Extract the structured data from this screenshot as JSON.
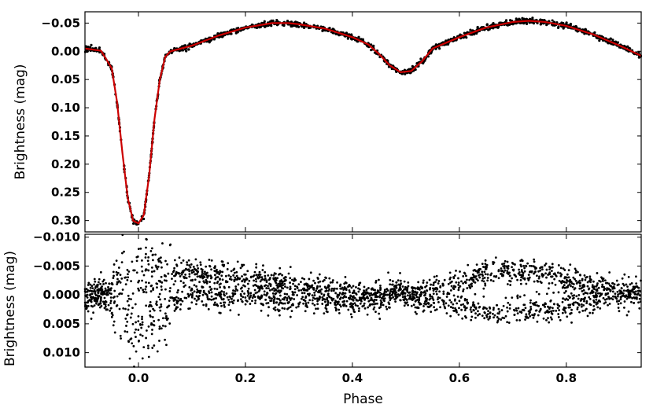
{
  "chart_data": [
    {
      "type": "line",
      "panel": "light curve",
      "xlabel": "",
      "ylabel": "Brightness (mag)",
      "xlim": [
        -0.1,
        0.94
      ],
      "ylim": [
        0.32,
        -0.07
      ],
      "y_inverted": true,
      "yticks": [
        -0.05,
        0.0,
        0.05,
        0.1,
        0.15,
        0.2,
        0.25,
        0.3
      ],
      "ytick_labels": [
        "−0.05",
        "0.00",
        "0.05",
        "0.10",
        "0.15",
        "0.20",
        "0.25",
        "0.30"
      ],
      "x": [
        -0.1,
        -0.07,
        -0.05,
        -0.04,
        -0.03,
        -0.02,
        -0.01,
        0.0,
        0.01,
        0.02,
        0.03,
        0.04,
        0.05,
        0.06,
        0.1,
        0.15,
        0.2,
        0.25,
        0.28,
        0.3,
        0.35,
        0.4,
        0.43,
        0.45,
        0.47,
        0.49,
        0.51,
        0.53,
        0.55,
        0.6,
        0.65,
        0.7,
        0.73,
        0.76,
        0.8,
        0.85,
        0.9,
        0.94
      ],
      "series": [
        {
          "values": [
            -0.005,
            -0.001,
            0.03,
            0.09,
            0.18,
            0.26,
            0.3,
            0.305,
            0.29,
            0.22,
            0.12,
            0.05,
            0.01,
            0.0,
            -0.01,
            -0.028,
            -0.042,
            -0.05,
            -0.05,
            -0.048,
            -0.04,
            -0.025,
            -0.012,
            0.005,
            0.025,
            0.037,
            0.035,
            0.018,
            -0.005,
            -0.025,
            -0.042,
            -0.052,
            -0.054,
            -0.052,
            -0.045,
            -0.03,
            -0.01,
            0.008
          ],
          "color": "#cc0000"
        }
      ],
      "points_color": "#000000"
    },
    {
      "type": "scatter",
      "panel": "residuals",
      "xlabel": "Phase",
      "ylabel": "Brightness (mag)",
      "xlim": [
        -0.1,
        0.94
      ],
      "ylim": [
        0.0125,
        -0.0105
      ],
      "y_inverted": true,
      "yticks": [
        -0.01,
        -0.005,
        0.0,
        0.005,
        0.01
      ],
      "ytick_labels": [
        "−0.010",
        "−0.005",
        "0.000",
        "0.005",
        "0.010"
      ],
      "xticks": [
        0.0,
        0.2,
        0.4,
        0.6,
        0.8
      ],
      "xtick_labels": [
        "0.0",
        "0.2",
        "0.4",
        "0.6",
        "0.8"
      ],
      "trend_x": [
        -0.1,
        -0.05,
        -0.02,
        0.0,
        0.03,
        0.05,
        0.1,
        0.2,
        0.3,
        0.4,
        0.45,
        0.49,
        0.52,
        0.6,
        0.65,
        0.7,
        0.75,
        0.8,
        0.85,
        0.9,
        0.94
      ],
      "upper_branch": [
        0.0,
        -0.001,
        -0.003,
        -0.005,
        -0.004,
        -0.004,
        -0.004,
        -0.003,
        -0.0015,
        -0.0005,
        0.0,
        -0.001,
        0.0,
        -0.002,
        -0.004,
        -0.0045,
        -0.004,
        -0.003,
        -0.0015,
        -0.001,
        -0.0005
      ],
      "lower_branch": [
        0.001,
        0.002,
        0.004,
        0.006,
        0.004,
        0.002,
        0.0,
        0.0005,
        0.001,
        0.0015,
        0.001,
        -0.001,
        0.001,
        0.002,
        0.003,
        0.003,
        0.0025,
        0.002,
        0.001,
        0.0005,
        0.0005
      ]
    }
  ]
}
